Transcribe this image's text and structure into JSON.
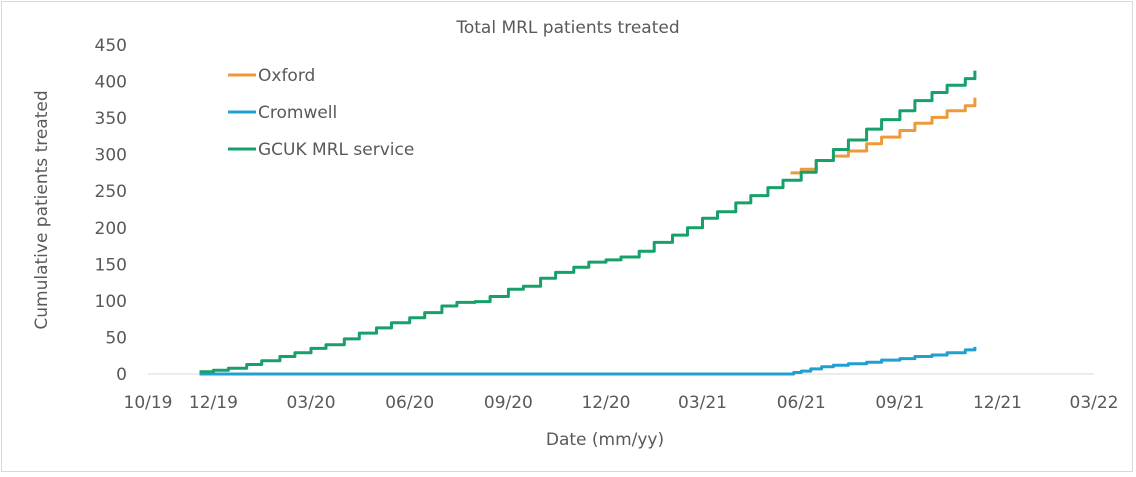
{
  "chart_data": {
    "type": "line",
    "title": "Total MRL patients treated",
    "xlabel": "Date (mm/yy)",
    "ylabel": "Cumulative patients treated",
    "x_tick_labels": [
      "10/19",
      "12/19",
      "03/20",
      "06/20",
      "09/20",
      "12/20",
      "03/21",
      "06/21",
      "09/21",
      "12/21",
      "03/22"
    ],
    "x_ticks": [
      "2019-10-01",
      "2019-12-01",
      "2020-03-01",
      "2020-06-01",
      "2020-09-01",
      "2020-12-01",
      "2021-03-01",
      "2021-06-01",
      "2021-09-01",
      "2021-12-01",
      "2022-03-01"
    ],
    "xlim": [
      "2019-10-01",
      "2022-03-01"
    ],
    "ylim": [
      0,
      450
    ],
    "y_ticks": [
      0,
      50,
      100,
      150,
      200,
      250,
      300,
      350,
      400,
      450
    ],
    "grid": false,
    "legend_position": "top-left",
    "series": [
      {
        "name": "Oxford",
        "color": "#ED9A3A",
        "x": [
          "2021-05-22",
          "2021-06-01",
          "2021-06-15",
          "2021-07-01",
          "2021-07-15",
          "2021-08-01",
          "2021-08-15",
          "2021-09-01",
          "2021-09-15",
          "2021-10-01",
          "2021-10-15",
          "2021-11-01",
          "2021-11-10"
        ],
        "values": [
          275,
          280,
          292,
          298,
          305,
          315,
          324,
          333,
          343,
          351,
          360,
          367,
          378
        ]
      },
      {
        "name": "Cromwell",
        "color": "#1FA0D0",
        "x": [
          "2019-11-18",
          "2021-05-20",
          "2021-05-25",
          "2021-06-01",
          "2021-06-10",
          "2021-06-20",
          "2021-07-01",
          "2021-07-15",
          "2021-08-01",
          "2021-08-15",
          "2021-09-01",
          "2021-09-15",
          "2021-10-01",
          "2021-10-15",
          "2021-11-01",
          "2021-11-10"
        ],
        "values": [
          0,
          0,
          2,
          4,
          7,
          10,
          12,
          14,
          16,
          19,
          21,
          24,
          26,
          29,
          33,
          37
        ]
      },
      {
        "name": "GCUK MRL service",
        "color": "#17A06A",
        "x": [
          "2019-11-18",
          "2019-12-01",
          "2019-12-15",
          "2020-01-01",
          "2020-01-15",
          "2020-02-01",
          "2020-02-15",
          "2020-03-01",
          "2020-03-15",
          "2020-04-01",
          "2020-04-15",
          "2020-05-01",
          "2020-05-15",
          "2020-06-01",
          "2020-06-15",
          "2020-07-01",
          "2020-07-15",
          "2020-08-01",
          "2020-08-15",
          "2020-09-01",
          "2020-09-15",
          "2020-10-01",
          "2020-10-15",
          "2020-11-01",
          "2020-11-15",
          "2020-12-01",
          "2020-12-15",
          "2021-01-01",
          "2021-01-15",
          "2021-02-01",
          "2021-02-15",
          "2021-03-01",
          "2021-03-15",
          "2021-04-01",
          "2021-04-15",
          "2021-05-01",
          "2021-05-15",
          "2021-06-01",
          "2021-06-15",
          "2021-07-01",
          "2021-07-15",
          "2021-08-01",
          "2021-08-15",
          "2021-09-01",
          "2021-09-15",
          "2021-10-01",
          "2021-10-15",
          "2021-11-01",
          "2021-11-10"
        ],
        "values": [
          3,
          5,
          8,
          13,
          18,
          24,
          29,
          35,
          40,
          48,
          56,
          63,
          70,
          77,
          84,
          93,
          98,
          99,
          106,
          116,
          120,
          131,
          139,
          146,
          153,
          156,
          160,
          168,
          180,
          190,
          200,
          213,
          222,
          234,
          244,
          255,
          265,
          276,
          292,
          307,
          320,
          335,
          348,
          360,
          374,
          385,
          395,
          404,
          415
        ]
      }
    ]
  }
}
